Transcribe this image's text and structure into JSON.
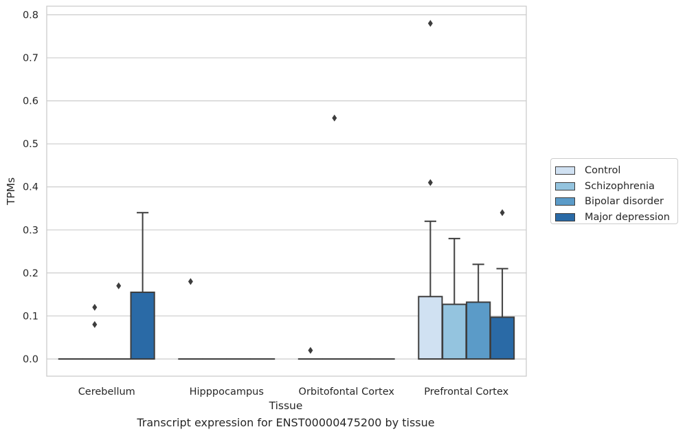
{
  "chart_data": {
    "type": "box",
    "title": "",
    "xlabel": "Tissue",
    "ylabel": "TPMs",
    "caption": "Transcript expression for ENST00000475200 by tissue",
    "ylim": [
      -0.04,
      0.82
    ],
    "yticks": [
      "0.0",
      "0.1",
      "0.2",
      "0.3",
      "0.4",
      "0.5",
      "0.6",
      "0.7",
      "0.8"
    ],
    "grid": "horizontal",
    "legend_position": "right",
    "categories": [
      "Cerebellum",
      "Hipppocampus",
      "Orbitofontal Cortex",
      "Prefrontal Cortex"
    ],
    "series": [
      {
        "name": "Control",
        "color": "#d0e1f2",
        "boxes": [
          {
            "q1": 0,
            "median": 0,
            "q3": 0,
            "whisker_low": 0,
            "whisker_high": 0,
            "outliers": []
          },
          {
            "q1": 0,
            "median": 0,
            "q3": 0,
            "whisker_low": 0,
            "whisker_high": 0,
            "outliers": [
              0.18
            ]
          },
          {
            "q1": 0,
            "median": 0,
            "q3": 0,
            "whisker_low": 0,
            "whisker_high": 0,
            "outliers": [
              0.02
            ]
          },
          {
            "q1": 0,
            "median": 0,
            "q3": 0.145,
            "whisker_low": 0,
            "whisker_high": 0.32,
            "outliers": [
              0.41,
              0.78
            ]
          }
        ]
      },
      {
        "name": "Schizophrenia",
        "color": "#94c4df",
        "boxes": [
          {
            "q1": 0,
            "median": 0,
            "q3": 0,
            "whisker_low": 0,
            "whisker_high": 0,
            "outliers": [
              0.08,
              0.12
            ]
          },
          {
            "q1": 0,
            "median": 0,
            "q3": 0,
            "whisker_low": 0,
            "whisker_high": 0,
            "outliers": []
          },
          {
            "q1": 0,
            "median": 0,
            "q3": 0,
            "whisker_low": 0,
            "whisker_high": 0,
            "outliers": [
              0.56
            ]
          },
          {
            "q1": 0,
            "median": 0,
            "q3": 0.127,
            "whisker_low": 0,
            "whisker_high": 0.28,
            "outliers": []
          }
        ]
      },
      {
        "name": "Bipolar disorder",
        "color": "#5b9bc8",
        "boxes": [
          {
            "q1": 0,
            "median": 0,
            "q3": 0,
            "whisker_low": 0,
            "whisker_high": 0,
            "outliers": [
              0.17
            ]
          },
          {
            "q1": 0,
            "median": 0,
            "q3": 0,
            "whisker_low": 0,
            "whisker_high": 0,
            "outliers": []
          },
          {
            "q1": 0,
            "median": 0,
            "q3": 0,
            "whisker_low": 0,
            "whisker_high": 0,
            "outliers": []
          },
          {
            "q1": 0,
            "median": 0,
            "q3": 0.132,
            "whisker_low": 0,
            "whisker_high": 0.22,
            "outliers": []
          }
        ]
      },
      {
        "name": "Major depression",
        "color": "#2a6aa6",
        "boxes": [
          {
            "q1": 0,
            "median": 0,
            "q3": 0.155,
            "whisker_low": 0,
            "whisker_high": 0.34,
            "outliers": []
          },
          {
            "q1": 0,
            "median": 0,
            "q3": 0,
            "whisker_low": 0,
            "whisker_high": 0,
            "outliers": []
          },
          {
            "q1": 0,
            "median": 0,
            "q3": 0,
            "whisker_low": 0,
            "whisker_high": 0,
            "outliers": []
          },
          {
            "q1": 0,
            "median": 0,
            "q3": 0.097,
            "whisker_low": 0,
            "whisker_high": 0.21,
            "outliers": [
              0.34
            ]
          }
        ]
      }
    ]
  }
}
